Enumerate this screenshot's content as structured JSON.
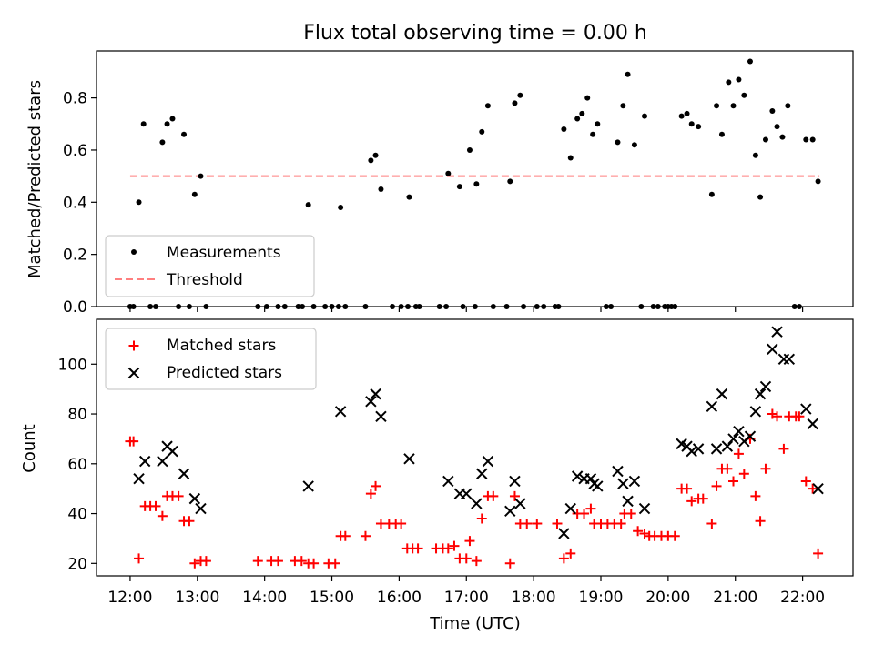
{
  "figure": {
    "title": "Flux total observing time = 0.00 h"
  },
  "chart_data": [
    {
      "type": "scatter",
      "ylabel": "Matched/Predicted stars",
      "xlim": [
        11.5,
        22.75
      ],
      "ylim": [
        0,
        0.98
      ],
      "yticks": [
        0.0,
        0.2,
        0.4,
        0.6,
        0.8
      ],
      "ytick_labels": [
        "0.0",
        "0.2",
        "0.4",
        "0.6",
        "0.8"
      ],
      "legend": {
        "placement": "lower-left",
        "entries": [
          "Measurements",
          "Threshold"
        ]
      },
      "series": [
        {
          "name": "Measurements",
          "color": "#000000",
          "marker": "dot",
          "points": [
            [
              12.0,
              0
            ],
            [
              12.05,
              0
            ],
            [
              12.13,
              0.4
            ],
            [
              12.2,
              0.7
            ],
            [
              12.3,
              0
            ],
            [
              12.38,
              0
            ],
            [
              12.48,
              0.63
            ],
            [
              12.55,
              0.7
            ],
            [
              12.63,
              0.72
            ],
            [
              12.72,
              0
            ],
            [
              12.8,
              0.66
            ],
            [
              12.88,
              0
            ],
            [
              12.96,
              0.43
            ],
            [
              13.05,
              0.5
            ],
            [
              13.13,
              0
            ],
            [
              13.9,
              0
            ],
            [
              14.03,
              0
            ],
            [
              14.2,
              0
            ],
            [
              14.3,
              0
            ],
            [
              14.5,
              0
            ],
            [
              14.56,
              0
            ],
            [
              14.65,
              0.39
            ],
            [
              14.73,
              0
            ],
            [
              14.9,
              0
            ],
            [
              15.0,
              0
            ],
            [
              15.1,
              0
            ],
            [
              15.13,
              0.38
            ],
            [
              15.2,
              0
            ],
            [
              15.5,
              0
            ],
            [
              15.58,
              0.56
            ],
            [
              15.65,
              0.58
            ],
            [
              15.73,
              0.45
            ],
            [
              15.9,
              0
            ],
            [
              16.03,
              0
            ],
            [
              16.13,
              0
            ],
            [
              16.15,
              0.42
            ],
            [
              16.25,
              0
            ],
            [
              16.3,
              0
            ],
            [
              16.6,
              0
            ],
            [
              16.7,
              0
            ],
            [
              16.73,
              0.51
            ],
            [
              16.9,
              0.46
            ],
            [
              16.95,
              0
            ],
            [
              17.05,
              0.6
            ],
            [
              17.13,
              0
            ],
            [
              17.15,
              0.47
            ],
            [
              17.23,
              0.67
            ],
            [
              17.32,
              0.77
            ],
            [
              17.4,
              0
            ],
            [
              17.6,
              0
            ],
            [
              17.65,
              0.48
            ],
            [
              17.72,
              0.78
            ],
            [
              17.8,
              0.81
            ],
            [
              17.85,
              0
            ],
            [
              18.05,
              0
            ],
            [
              18.15,
              0
            ],
            [
              18.32,
              0
            ],
            [
              18.37,
              0
            ],
            [
              18.45,
              0.68
            ],
            [
              18.55,
              0.57
            ],
            [
              18.65,
              0.72
            ],
            [
              18.72,
              0.74
            ],
            [
              18.8,
              0.8
            ],
            [
              18.88,
              0.66
            ],
            [
              18.95,
              0.7
            ],
            [
              19.08,
              0
            ],
            [
              19.15,
              0
            ],
            [
              19.25,
              0.63
            ],
            [
              19.33,
              0.77
            ],
            [
              19.4,
              0.89
            ],
            [
              19.5,
              0.62
            ],
            [
              19.6,
              0
            ],
            [
              19.65,
              0.73
            ],
            [
              19.78,
              0
            ],
            [
              19.85,
              0
            ],
            [
              19.95,
              0
            ],
            [
              20.0,
              0
            ],
            [
              20.05,
              0
            ],
            [
              20.1,
              0
            ],
            [
              20.2,
              0.73
            ],
            [
              20.28,
              0.74
            ],
            [
              20.35,
              0.7
            ],
            [
              20.45,
              0.69
            ],
            [
              20.65,
              0.43
            ],
            [
              20.72,
              0.77
            ],
            [
              20.8,
              0.66
            ],
            [
              20.9,
              0.86
            ],
            [
              20.97,
              0.77
            ],
            [
              21.05,
              0.87
            ],
            [
              21.13,
              0.81
            ],
            [
              21.22,
              0.94
            ],
            [
              21.3,
              0.58
            ],
            [
              21.37,
              0.42
            ],
            [
              21.45,
              0.64
            ],
            [
              21.55,
              0.75
            ],
            [
              21.62,
              0.69
            ],
            [
              21.7,
              0.65
            ],
            [
              21.78,
              0.77
            ],
            [
              21.88,
              0
            ],
            [
              21.95,
              0
            ],
            [
              22.05,
              0.64
            ],
            [
              22.15,
              0.64
            ],
            [
              22.23,
              0.48
            ]
          ]
        },
        {
          "name": "Threshold",
          "color": "#ff7f7f",
          "linestyle": "dashed",
          "x": [
            12.0,
            22.25
          ],
          "y": [
            0.5,
            0.5
          ]
        }
      ]
    },
    {
      "type": "scatter",
      "ylabel": "Count",
      "xlabel": "Time (UTC)",
      "xlim": [
        11.5,
        22.75
      ],
      "ylim": [
        15,
        118
      ],
      "yticks": [
        20,
        40,
        60,
        80,
        100
      ],
      "ytick_labels": [
        "20",
        "40",
        "60",
        "80",
        "100"
      ],
      "xticks": [
        12,
        13,
        14,
        15,
        16,
        17,
        18,
        19,
        20,
        21,
        22
      ],
      "xtick_labels": [
        "12:00",
        "13:00",
        "14:00",
        "15:00",
        "16:00",
        "17:00",
        "18:00",
        "19:00",
        "20:00",
        "21:00",
        "22:00"
      ],
      "legend": {
        "placement": "upper-left",
        "entries": [
          "Matched stars",
          "Predicted stars"
        ]
      },
      "series": [
        {
          "name": "Matched stars",
          "color": "#ff0000",
          "marker": "plus",
          "points": [
            [
              12.0,
              69
            ],
            [
              12.05,
              69
            ],
            [
              12.13,
              22
            ],
            [
              12.22,
              43
            ],
            [
              12.3,
              43
            ],
            [
              12.38,
              43
            ],
            [
              12.48,
              39
            ],
            [
              12.55,
              47
            ],
            [
              12.63,
              47
            ],
            [
              12.72,
              47
            ],
            [
              12.8,
              37
            ],
            [
              12.88,
              37
            ],
            [
              12.96,
              20
            ],
            [
              13.05,
              21
            ],
            [
              13.13,
              21
            ],
            [
              13.9,
              21
            ],
            [
              14.1,
              21
            ],
            [
              14.2,
              21
            ],
            [
              14.45,
              21
            ],
            [
              14.55,
              21
            ],
            [
              14.65,
              20
            ],
            [
              14.73,
              20
            ],
            [
              14.95,
              20
            ],
            [
              15.05,
              20
            ],
            [
              15.13,
              31
            ],
            [
              15.2,
              31
            ],
            [
              15.5,
              31
            ],
            [
              15.58,
              48
            ],
            [
              15.65,
              51
            ],
            [
              15.73,
              36
            ],
            [
              15.85,
              36
            ],
            [
              15.95,
              36
            ],
            [
              16.03,
              36
            ],
            [
              16.12,
              26
            ],
            [
              16.2,
              26
            ],
            [
              16.28,
              26
            ],
            [
              16.55,
              26
            ],
            [
              16.65,
              26
            ],
            [
              16.73,
              26
            ],
            [
              16.82,
              27
            ],
            [
              16.9,
              22
            ],
            [
              17.0,
              22
            ],
            [
              17.05,
              29
            ],
            [
              17.15,
              21
            ],
            [
              17.23,
              38
            ],
            [
              17.32,
              47
            ],
            [
              17.4,
              47
            ],
            [
              17.65,
              20
            ],
            [
              17.72,
              47
            ],
            [
              17.8,
              36
            ],
            [
              17.9,
              36
            ],
            [
              18.05,
              36
            ],
            [
              18.35,
              36
            ],
            [
              18.45,
              22
            ],
            [
              18.55,
              24
            ],
            [
              18.65,
              40
            ],
            [
              18.75,
              40
            ],
            [
              18.85,
              42
            ],
            [
              18.9,
              36
            ],
            [
              19.0,
              36
            ],
            [
              19.1,
              36
            ],
            [
              19.2,
              36
            ],
            [
              19.3,
              36
            ],
            [
              19.35,
              40
            ],
            [
              19.45,
              40
            ],
            [
              19.55,
              33
            ],
            [
              19.65,
              32
            ],
            [
              19.72,
              31
            ],
            [
              19.8,
              31
            ],
            [
              19.9,
              31
            ],
            [
              20.0,
              31
            ],
            [
              20.1,
              31
            ],
            [
              20.2,
              50
            ],
            [
              20.28,
              50
            ],
            [
              20.35,
              45
            ],
            [
              20.45,
              46
            ],
            [
              20.52,
              46
            ],
            [
              20.65,
              36
            ],
            [
              20.72,
              51
            ],
            [
              20.8,
              58
            ],
            [
              20.88,
              58
            ],
            [
              20.97,
              53
            ],
            [
              21.05,
              64
            ],
            [
              21.13,
              56
            ],
            [
              21.22,
              70
            ],
            [
              21.3,
              47
            ],
            [
              21.37,
              37
            ],
            [
              21.45,
              58
            ],
            [
              21.55,
              80
            ],
            [
              21.62,
              79
            ],
            [
              21.72,
              66
            ],
            [
              21.8,
              79
            ],
            [
              21.9,
              79
            ],
            [
              21.95,
              79
            ],
            [
              22.05,
              53
            ],
            [
              22.15,
              50
            ],
            [
              22.23,
              24
            ]
          ]
        },
        {
          "name": "Predicted stars",
          "color": "#000000",
          "marker": "x",
          "points": [
            [
              12.13,
              54
            ],
            [
              12.22,
              61
            ],
            [
              12.48,
              61
            ],
            [
              12.55,
              67
            ],
            [
              12.63,
              65
            ],
            [
              12.8,
              56
            ],
            [
              12.96,
              46
            ],
            [
              13.05,
              42
            ],
            [
              14.65,
              51
            ],
            [
              15.13,
              81
            ],
            [
              15.58,
              85
            ],
            [
              15.65,
              88
            ],
            [
              15.73,
              79
            ],
            [
              16.15,
              62
            ],
            [
              16.73,
              53
            ],
            [
              16.9,
              48
            ],
            [
              17.0,
              48
            ],
            [
              17.15,
              44
            ],
            [
              17.23,
              56
            ],
            [
              17.32,
              61
            ],
            [
              17.65,
              41
            ],
            [
              17.72,
              53
            ],
            [
              17.8,
              44
            ],
            [
              18.45,
              32
            ],
            [
              18.55,
              42
            ],
            [
              18.65,
              55
            ],
            [
              18.75,
              54
            ],
            [
              18.85,
              54
            ],
            [
              18.9,
              52
            ],
            [
              18.95,
              51
            ],
            [
              19.25,
              57
            ],
            [
              19.33,
              52
            ],
            [
              19.4,
              45
            ],
            [
              19.5,
              53
            ],
            [
              19.65,
              42
            ],
            [
              20.2,
              68
            ],
            [
              20.28,
              67
            ],
            [
              20.35,
              65
            ],
            [
              20.45,
              66
            ],
            [
              20.65,
              83
            ],
            [
              20.72,
              66
            ],
            [
              20.8,
              88
            ],
            [
              20.88,
              67
            ],
            [
              20.97,
              70
            ],
            [
              21.05,
              73
            ],
            [
              21.13,
              69
            ],
            [
              21.22,
              71
            ],
            [
              21.3,
              81
            ],
            [
              21.37,
              88
            ],
            [
              21.45,
              91
            ],
            [
              21.55,
              106
            ],
            [
              21.62,
              113
            ],
            [
              21.72,
              102
            ],
            [
              21.8,
              102
            ],
            [
              22.05,
              82
            ],
            [
              22.15,
              76
            ],
            [
              22.23,
              50
            ]
          ]
        }
      ]
    }
  ]
}
